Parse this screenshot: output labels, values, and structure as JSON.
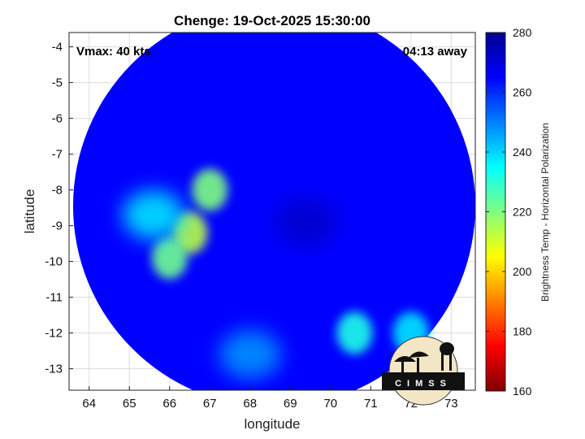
{
  "chart_data": {
    "type": "heatmap",
    "title": "Chenge: 19-Oct-2025 15:30:00",
    "annotations": {
      "vmax": "Vmax: 40 kts",
      "time_away": "04:13 away"
    },
    "xlabel": "longitude",
    "ylabel": "latitude",
    "xlim": [
      63.5,
      73.6
    ],
    "ylim": [
      -13.6,
      -3.6
    ],
    "xticks": [
      64,
      65,
      66,
      67,
      68,
      69,
      70,
      71,
      72,
      73
    ],
    "yticks": [
      -4,
      -5,
      -6,
      -7,
      -8,
      -9,
      -10,
      -11,
      -12,
      -13
    ],
    "grid": true,
    "colorbar": {
      "label": "Brightness Temp - Horizontal Polarization",
      "range": [
        160,
        280
      ],
      "ticks": [
        280,
        260,
        240,
        220,
        200,
        180,
        160
      ],
      "colormap": [
        "#7f0000",
        "#ff0000",
        "#ff8000",
        "#ffff00",
        "#80ff80",
        "#00ffff",
        "#0080ff",
        "#0000ff",
        "#00008f"
      ]
    },
    "swath": {
      "center_lon": 68.6,
      "center_lat": -8.45,
      "radius_deg": 5.0
    },
    "background_tb": 265,
    "features": [
      {
        "name": "eye",
        "lon": 69.4,
        "lat": -8.9,
        "tb": 272
      },
      {
        "name": "western-band-core",
        "lon": 66.5,
        "lat": -9.2,
        "tb": 213
      },
      {
        "name": "western-band-north",
        "lon": 67.0,
        "lat": -8.0,
        "tb": 220
      },
      {
        "name": "western-band-mid",
        "lon": 66.0,
        "lat": -9.9,
        "tb": 222
      },
      {
        "name": "western-band-outer",
        "lon": 65.6,
        "lat": -8.7,
        "tb": 238
      },
      {
        "name": "southern-cell",
        "lon": 70.6,
        "lat": -12.0,
        "tb": 232
      },
      {
        "name": "south-east-cell",
        "lon": 72.0,
        "lat": -12.0,
        "tb": 238
      },
      {
        "name": "south-band",
        "lon": 68.0,
        "lat": -12.6,
        "tb": 248
      }
    ]
  },
  "logo": {
    "text": "CIMSS"
  }
}
